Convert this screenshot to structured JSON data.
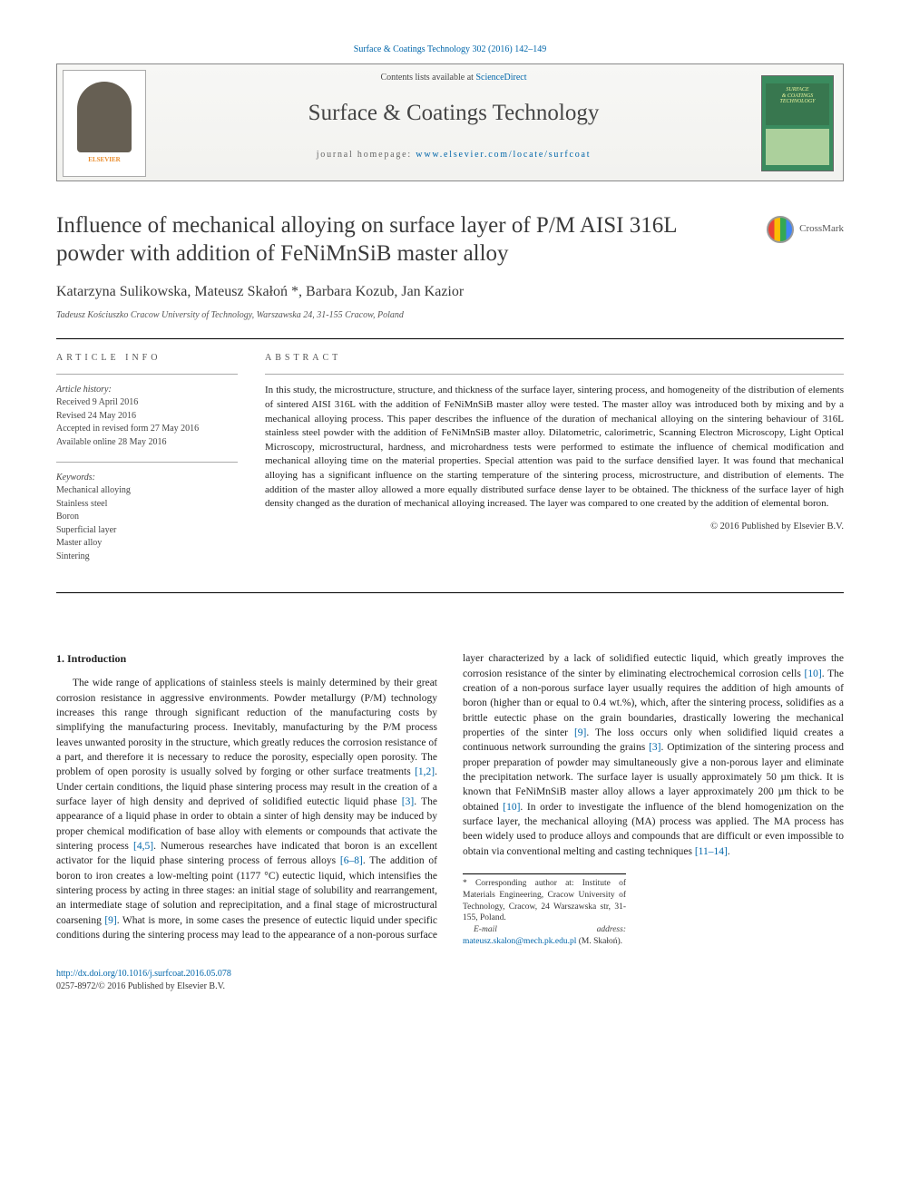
{
  "top_ref": "Surface & Coatings Technology 302 (2016) 142–149",
  "header": {
    "contents_prefix": "Contents lists available at ",
    "contents_link": "ScienceDirect",
    "journal": "Surface & Coatings Technology",
    "homepage_prefix": "journal homepage: ",
    "homepage_link": "www.elsevier.com/locate/surfcoat",
    "publisher_logo_text": "ELSEVIER",
    "cover_line1": "SURFACE",
    "cover_line2": "& COATINGS",
    "cover_line3": "TECHNOLOGY"
  },
  "title": "Influence of mechanical alloying on surface layer of P/M AISI 316L powder with addition of FeNiMnSiB master alloy",
  "crossmark": "CrossMark",
  "authors": "Katarzyna Sulikowska, Mateusz Skałoń *, Barbara Kozub, Jan Kazior",
  "affiliation": "Tadeusz Kościuszko Cracow University of Technology, Warszawska 24, 31-155 Cracow, Poland",
  "article_info": {
    "head": "article info",
    "history_label": "Article history:",
    "history": [
      "Received 9 April 2016",
      "Revised 24 May 2016",
      "Accepted in revised form 27 May 2016",
      "Available online 28 May 2016"
    ],
    "keywords_label": "Keywords:",
    "keywords": [
      "Mechanical alloying",
      "Stainless steel",
      "Boron",
      "Superficial layer",
      "Master alloy",
      "Sintering"
    ]
  },
  "abstract": {
    "head": "abstract",
    "text": "In this study, the microstructure, structure, and thickness of the surface layer, sintering process, and homogeneity of the distribution of elements of sintered AISI 316L with the addition of FeNiMnSiB master alloy were tested. The master alloy was introduced both by mixing and by a mechanical alloying process. This paper describes the influence of the duration of mechanical alloying on the sintering behaviour of 316L stainless steel powder with the addition of FeNiMnSiB master alloy. Dilatometric, calorimetric, Scanning Electron Microscopy, Light Optical Microscopy, microstructural, hardness, and microhardness tests were performed to estimate the influence of chemical modification and mechanical alloying time on the material properties. Special attention was paid to the surface densified layer. It was found that mechanical alloying has a significant influence on the starting temperature of the sintering process, microstructure, and distribution of elements. The addition of the master alloy allowed a more equally distributed surface dense layer to be obtained. The thickness of the surface layer of high density changed as the duration of mechanical alloying increased. The layer was compared to one created by the addition of elemental boron.",
    "copyright": "© 2016 Published by Elsevier B.V."
  },
  "intro": {
    "heading": "1. Introduction",
    "p1a": "The wide range of applications of stainless steels is mainly determined by their great corrosion resistance in aggressive environments. Powder metallurgy (P/M) technology increases this range through significant reduction of the manufacturing costs by simplifying the manufacturing process. Inevitably, manufacturing by the P/M process leaves unwanted porosity in the structure, which greatly reduces the corrosion resistance of a part, and therefore it is necessary to reduce the porosity, especially open porosity. The problem of open porosity is usually solved by forging or other surface treatments ",
    "c1": "[1,2]",
    "p1b": ". Under certain conditions, the liquid phase sintering process may result in the creation of a surface layer of high density and deprived of solidified eutectic liquid phase ",
    "c2": "[3]",
    "p1c": ". The appearance of a liquid phase in order to obtain a sinter of high density may be induced by proper chemical modification of base alloy with elements or compounds that activate the sintering process ",
    "c3": "[4,5]",
    "p1d": ". Numerous researches have indicated that boron is an excellent activator for the liquid phase sintering process of ferrous alloys ",
    "c4": "[6–8]",
    "p1e": ". The addition of boron to iron creates a low-melting point ",
    "p2a": "(1177 °C) eutectic liquid, which intensifies the sintering process by acting in three stages: an initial stage of solubility and rearrangement, an intermediate stage of solution and reprecipitation, and a final stage of microstructural coarsening ",
    "c5": "[9]",
    "p2b": ". What is more, in some cases the presence of eutectic liquid under specific conditions during the sintering process may lead to the appearance of a non-porous surface layer characterized by a lack of solidified eutectic liquid, which greatly improves the corrosion resistance of the sinter by eliminating electrochemical corrosion cells ",
    "c6": "[10]",
    "p2c": ". The creation of a non-porous surface layer usually requires the addition of high amounts of boron (higher than or equal to 0.4 wt.%), which, after the sintering process, solidifies as a brittle eutectic phase on the grain boundaries, drastically lowering the mechanical properties of the sinter ",
    "c7": "[9]",
    "p2d": ". The loss occurs only when solidified liquid creates a continuous network surrounding the grains ",
    "c8": "[3]",
    "p2e": ". Optimization of the sintering process and proper preparation of powder may simultaneously give a non-porous layer and eliminate the precipitation network. The surface layer is usually approximately 50 µm thick. It is known that FeNiMnSiB master alloy allows a layer approximately 200 µm thick to be obtained ",
    "c9": "[10]",
    "p2f": ". In order to investigate the influence of the blend homogenization on the surface layer, the mechanical alloying (MA) process was applied. The MA process has been widely used to produce alloys and compounds that are difficult or even impossible to obtain via conventional melting and casting techniques ",
    "c10": "[11–14]",
    "p2g": "."
  },
  "footnote": {
    "corr": "* Corresponding author at: Institute of Materials Engineering, Cracow University of Technology, Cracow, 24 Warszawska str, 31-155, Poland.",
    "email_label": "E-mail address: ",
    "email": "mateusz.skalon@mech.pk.edu.pl",
    "email_suffix": " (M. Skałoń)."
  },
  "footer": {
    "doi": "http://dx.doi.org/10.1016/j.surfcoat.2016.05.078",
    "issn_line": "0257-8972/© 2016 Published by Elsevier B.V."
  },
  "colors": {
    "link": "#0066aa",
    "text": "#222222",
    "muted": "#555555",
    "cover_bg": "#3a8b5e"
  }
}
